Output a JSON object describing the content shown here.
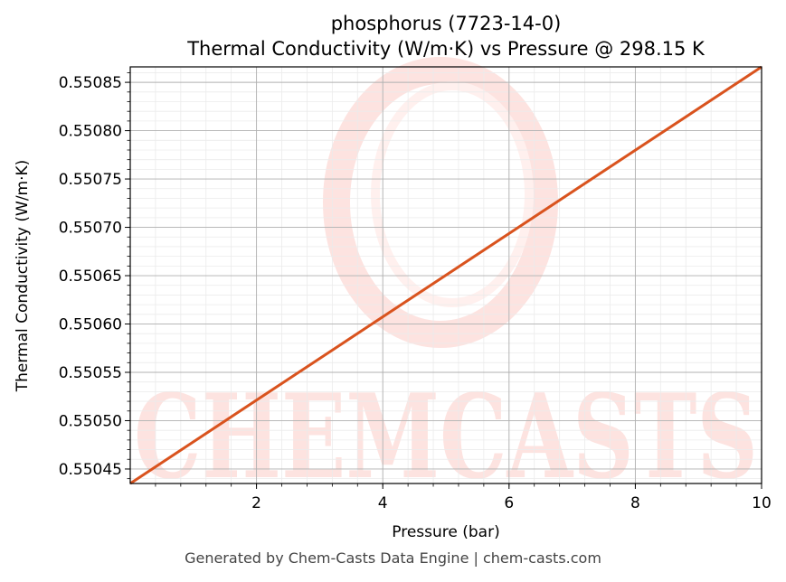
{
  "chart_data": {
    "type": "line",
    "title": "phosphorus (7723-14-0)",
    "subtitle": "Thermal Conductivity (W/m·K) vs Pressure @ 298.15 K",
    "xlabel": "Pressure (bar)",
    "ylabel": "Thermal Conductivity (W/m·K)",
    "xlim": [
      0.0,
      10.0
    ],
    "ylim": [
      0.550435,
      0.550866
    ],
    "x_ticks": [
      2,
      4,
      6,
      8,
      10
    ],
    "x_tick_labels": [
      "2",
      "4",
      "6",
      "8",
      "10"
    ],
    "y_ticks": [
      0.55045,
      0.5505,
      0.55055,
      0.5506,
      0.55065,
      0.5507,
      0.55075,
      0.5508,
      0.55085
    ],
    "y_tick_labels": [
      "0.55045",
      "0.55050",
      "0.55055",
      "0.55060",
      "0.55065",
      "0.55070",
      "0.55075",
      "0.55080",
      "0.55085"
    ],
    "grid": true,
    "series": [
      {
        "color": "#d9531e",
        "x": [
          0.0,
          10.0
        ],
        "y": [
          0.550435,
          0.550866
        ]
      }
    ]
  },
  "watermark": {
    "text": "CHEMCASTS",
    "color": "#fde3e0"
  },
  "footer": "Generated by Chem-Casts Data Engine | chem-casts.com"
}
